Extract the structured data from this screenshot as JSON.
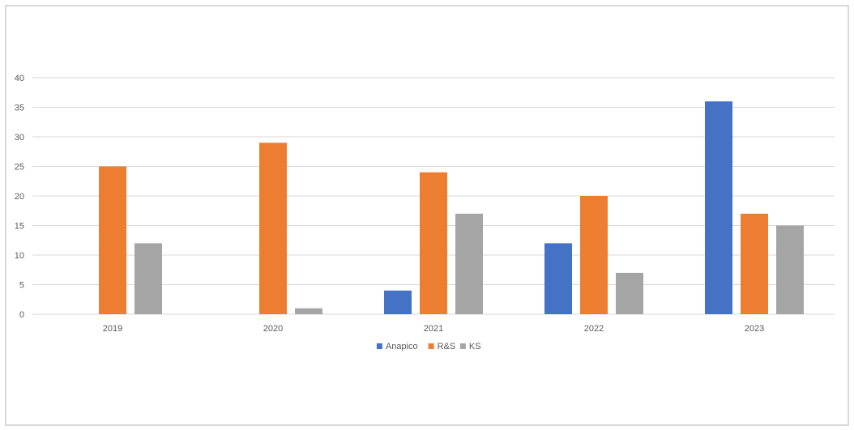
{
  "chart_data": {
    "type": "bar",
    "title": "",
    "xlabel": "",
    "ylabel": "",
    "categories": [
      "2019",
      "2020",
      "2021",
      "2022",
      "2023"
    ],
    "series": [
      {
        "name": "Anapico",
        "values": [
          0,
          0,
          4,
          12,
          36
        ],
        "color": "#4472c4"
      },
      {
        "name": "R&S",
        "values": [
          25,
          29,
          24,
          20,
          17
        ],
        "color": "#ed7d31"
      },
      {
        "name": "KS",
        "values": [
          12,
          1,
          17,
          7,
          15
        ],
        "color": "#a5a5a5"
      }
    ],
    "ylim": [
      0,
      40
    ],
    "yticks": [
      "0",
      "5",
      "10",
      "15",
      "20",
      "25",
      "30",
      "35",
      "40"
    ],
    "grid": true,
    "legend_position": "bottom"
  },
  "colors": {
    "gridline": "#d9d9d9",
    "border": "#d9d9d9",
    "text": "#595959"
  }
}
